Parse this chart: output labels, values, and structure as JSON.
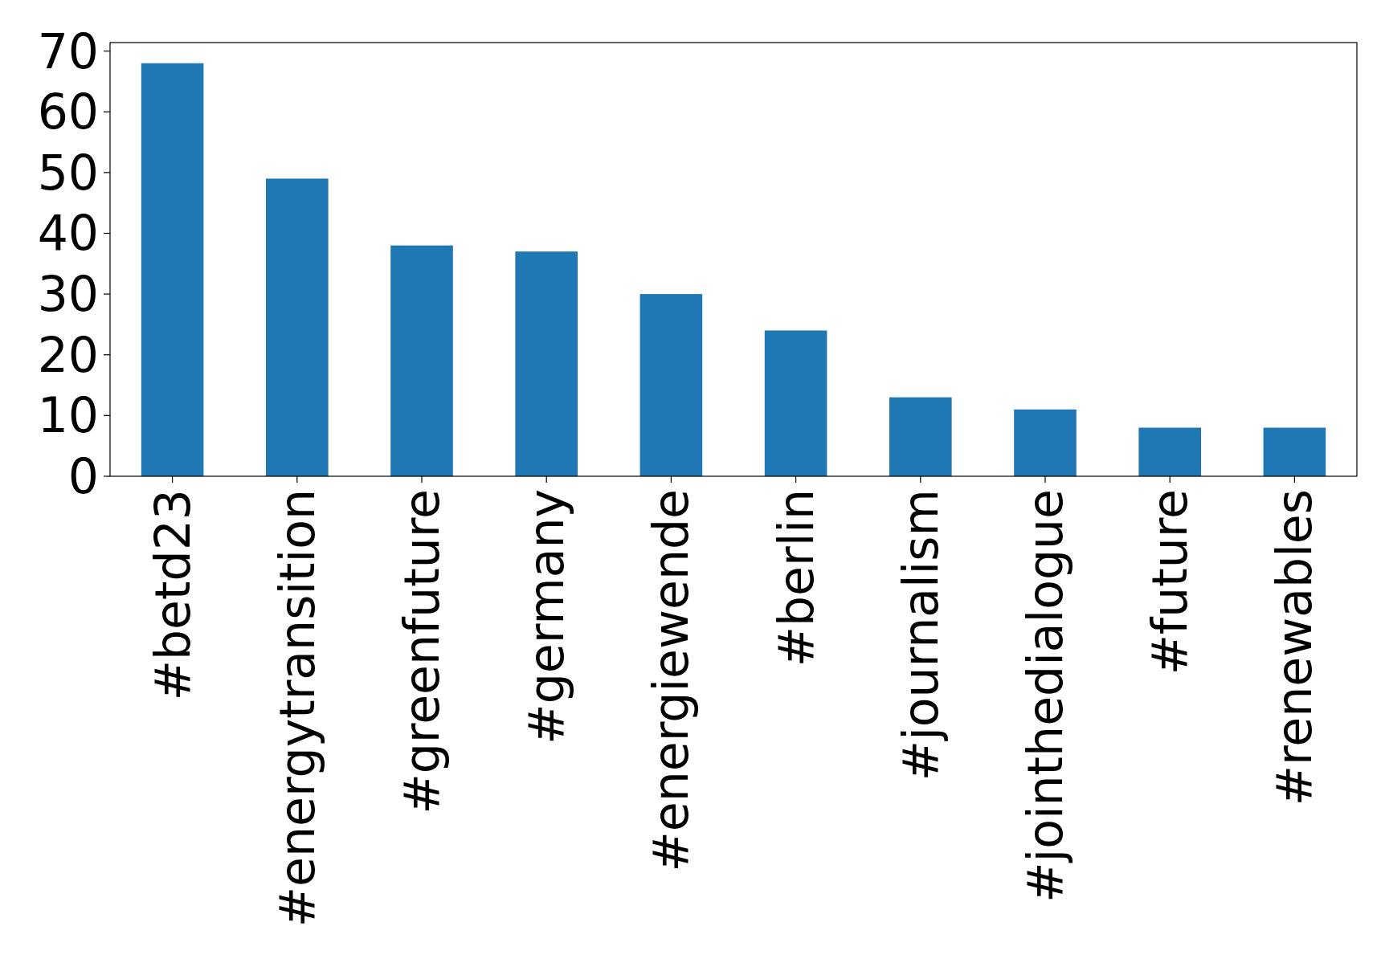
{
  "chart_data": {
    "type": "bar",
    "categories": [
      "#betd23",
      "#energytransition",
      "#greenfuture",
      "#germany",
      "#energiewende",
      "#berlin",
      "#journalism",
      "#jointhedialogue",
      "#future",
      "#renewables"
    ],
    "values": [
      68,
      49,
      38,
      37,
      30,
      24,
      13,
      11,
      8,
      8
    ],
    "color": "#1f77b4",
    "ylim": [
      0,
      71.4
    ],
    "yticks": [
      0,
      10,
      20,
      30,
      40,
      50,
      60,
      70
    ]
  }
}
